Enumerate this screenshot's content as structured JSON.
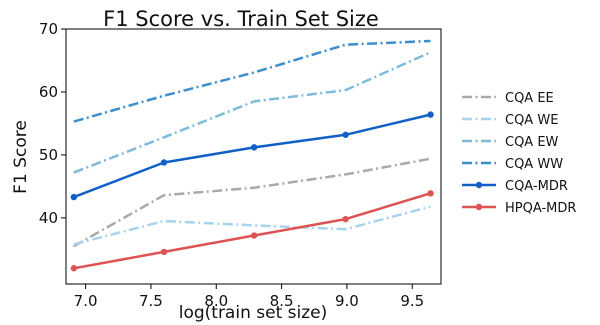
{
  "chart_data": {
    "type": "line",
    "title": "F1 Score vs. Train Set Size",
    "xlabel": "log(train set size)",
    "ylabel": "F1 Score",
    "xlim": [
      6.85,
      9.72
    ],
    "ylim": [
      29.5,
      70
    ],
    "xticks": [
      "7.0",
      "7.5",
      "8.0",
      "8.5",
      "9.0",
      "9.5"
    ],
    "yticks": [
      "40",
      "50",
      "60",
      "70"
    ],
    "x": [
      6.91,
      7.6,
      8.29,
      8.99,
      9.64
    ],
    "legend_position": "right",
    "series": [
      {
        "name": "CQA EE",
        "color": "#a9a9a9",
        "dash": "dashdot",
        "markers": false,
        "values": [
          35.5,
          43.6,
          44.8,
          46.9,
          49.4
        ]
      },
      {
        "name": "CQA WE",
        "color": "#a6d4ea",
        "dash": "dashdot",
        "markers": false,
        "values": [
          35.8,
          39.5,
          38.8,
          38.2,
          41.8
        ]
      },
      {
        "name": "CQA EW",
        "color": "#7fbadb",
        "dash": "dashdot",
        "markers": false,
        "values": [
          47.2,
          52.8,
          58.5,
          60.3,
          66.3
        ]
      },
      {
        "name": "CQA WW",
        "color": "#3c8fcd",
        "dash": "dashdot",
        "markers": false,
        "values": [
          55.3,
          59.4,
          63.1,
          67.5,
          68.1
        ]
      },
      {
        "name": "CQA-MDR",
        "color": "#1060c8",
        "dash": "solid",
        "markers": true,
        "values": [
          43.3,
          48.8,
          51.2,
          53.2,
          56.4
        ]
      },
      {
        "name": "HPQA-MDR",
        "color": "#dd5353",
        "dash": "solid",
        "markers": true,
        "values": [
          32.0,
          34.6,
          37.2,
          39.8,
          43.9
        ]
      }
    ]
  }
}
